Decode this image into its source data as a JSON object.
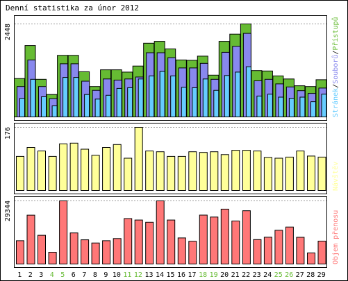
{
  "chart_data": {
    "type": "bar",
    "title": "Denní statistika za únor 2012",
    "categories": [
      "1",
      "2",
      "3",
      "4",
      "5",
      "6",
      "7",
      "8",
      "9",
      "10",
      "11",
      "12",
      "13",
      "14",
      "15",
      "16",
      "17",
      "18",
      "19",
      "20",
      "21",
      "22",
      "23",
      "24",
      "25",
      "26",
      "27",
      "28",
      "29"
    ],
    "weekend_days": [
      "4",
      "5",
      "11",
      "12",
      "18",
      "19",
      "25",
      "26"
    ],
    "panels": [
      {
        "name": "traffic",
        "ymax_label": "2448",
        "ymax": 2448,
        "legend": [
          {
            "label": "Stránek",
            "color": "#66ccff"
          },
          {
            "label": "Souborů",
            "color": "#8888ee"
          },
          {
            "label": "Přístupů",
            "color": "#66bb33"
          }
        ],
        "legend_separator": "/",
        "series": [
          {
            "name": "Přístupů",
            "color": "#66bb33",
            "values": [
              1010,
              1880,
              990,
              590,
              1620,
              1620,
              1190,
              800,
              1240,
              1240,
              1180,
              1340,
              1940,
              1990,
              1790,
              1500,
              1490,
              1600,
              1100,
              1990,
              2180,
              2448,
              1220,
              1210,
              1080,
              1000,
              820,
              800,
              980
            ]
          },
          {
            "name": "Souborů",
            "color": "#8888ee",
            "values": [
              800,
              1500,
              800,
              480,
              1400,
              1400,
              940,
              700,
              1000,
              970,
              1000,
              1050,
              1690,
              1690,
              1560,
              1290,
              1290,
              1410,
              990,
              1700,
              1860,
              2200,
              950,
              990,
              870,
              790,
              690,
              620,
              760
            ]
          },
          {
            "name": "Stránek",
            "color": "#66ccff",
            "values": [
              490,
              990,
              530,
              290,
              1040,
              1040,
              590,
              470,
              570,
              750,
              770,
              1000,
              1080,
              1200,
              1080,
              780,
              770,
              1000,
              700,
              1090,
              1180,
              1320,
              550,
              600,
              520,
              490,
              520,
              400,
              600
            ]
          }
        ]
      },
      {
        "name": "visits",
        "ymax_label": "176",
        "ymax": 176,
        "legend": [
          {
            "label": "Návštěv",
            "color": "#ffff99"
          }
        ],
        "series": [
          {
            "name": "Návštěv",
            "color": "#ffff99",
            "values": [
              95,
              120,
              110,
              95,
              130,
              132,
              115,
              98,
              120,
              128,
              90,
              176,
              110,
              108,
              95,
              95,
              108,
              106,
              108,
              100,
              112,
              112,
              110,
              92,
              90,
              93,
              110,
              96,
              93
            ]
          }
        ]
      },
      {
        "name": "volume",
        "ymax_label": "29344",
        "ymax": 29344,
        "legend": [
          {
            "label": "Objem přenosu",
            "color": "#ff7777"
          }
        ],
        "series": [
          {
            "name": "Objem přenosu",
            "color": "#ff7777",
            "values": [
              10830,
              22700,
              13350,
              5470,
              29344,
              14440,
              11240,
              9780,
              10830,
              11820,
              21110,
              20430,
              19400,
              29344,
              20430,
              12120,
              10580,
              22720,
              21820,
              25500,
              19980,
              24770,
              11360,
              12460,
              15660,
              17200,
              12410,
              5120,
              10650
            ]
          }
        ]
      }
    ]
  },
  "colors": {
    "bar_outline": "#000000",
    "panel_border": "#000000",
    "grid": "#999999",
    "day_label": "#000000",
    "weekend_day_label": "#66bb33",
    "legend_separator": "#000000"
  }
}
